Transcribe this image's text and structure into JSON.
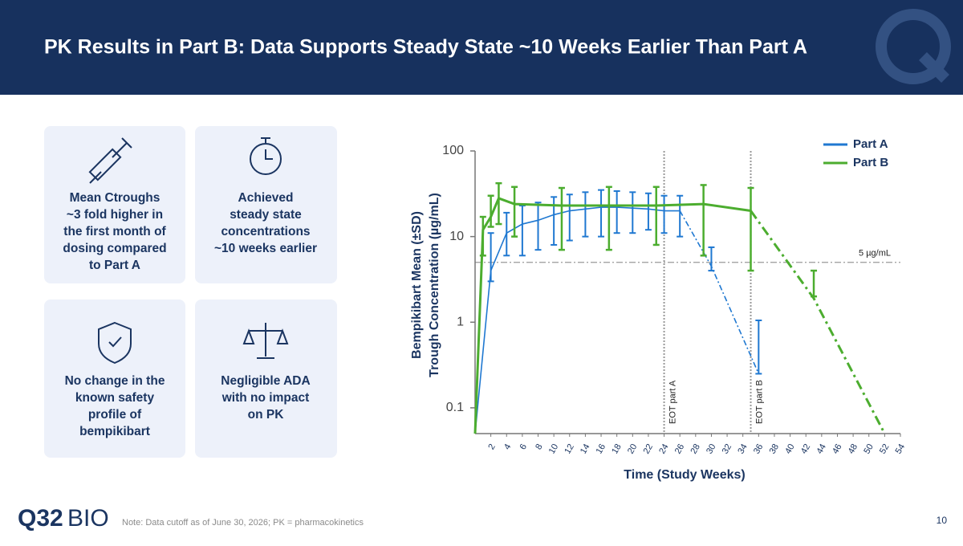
{
  "header": {
    "title": "PK Results in Part B: Data Supports Steady State ~10 Weeks Earlier Than Part A"
  },
  "cards": [
    {
      "lines": [
        "Mean Ctroughs",
        "~3 fold higher in",
        "the first month of",
        "dosing compared",
        "to Part A"
      ]
    },
    {
      "lines": [
        "Achieved",
        "steady state",
        "concentrations",
        "~10 weeks earlier"
      ]
    },
    {
      "lines": [
        "No change in the",
        "known safety",
        "profile of",
        "bempikibart"
      ]
    },
    {
      "lines": [
        "Negligible ADA",
        "with no impact",
        "on PK"
      ]
    }
  ],
  "chart_data": {
    "type": "line",
    "xlabel": "Time (Study Weeks)",
    "ylabel": [
      "Bempikibart Mean (±SD)",
      "Trough Concentration (µg/mL)"
    ],
    "xlim": [
      0,
      54
    ],
    "xticks": [
      2,
      4,
      6,
      8,
      10,
      12,
      14,
      16,
      18,
      20,
      22,
      24,
      26,
      28,
      30,
      32,
      34,
      36,
      38,
      40,
      42,
      44,
      46,
      48,
      50,
      52,
      54
    ],
    "ylim": [
      0.05,
      100
    ],
    "yticks": [
      0.1,
      1,
      10,
      100
    ],
    "log_y": true,
    "legend": "top-right",
    "reference_line": {
      "y": 5,
      "label": "5 µg/mL",
      "color": "#9a9a9a"
    },
    "vlines": [
      {
        "x": 24,
        "label": "EOT part A"
      },
      {
        "x": 35,
        "label": "EOT part B"
      }
    ],
    "series": [
      {
        "name": "Part A",
        "color": "#1f78d1",
        "dash_from": 26,
        "x": [
          0,
          2,
          4,
          6,
          8,
          10,
          12,
          14,
          16,
          18,
          20,
          22,
          24,
          26,
          30,
          36
        ],
        "values": [
          0.05,
          4,
          11,
          14,
          15.5,
          18,
          20,
          21,
          22,
          22,
          21.5,
          21,
          20,
          20,
          4.5,
          0.25
        ],
        "lower": [
          null,
          3,
          6,
          6,
          7,
          8,
          9,
          10,
          10,
          11,
          11,
          12,
          11,
          10,
          4,
          0.25
        ],
        "upper": [
          null,
          11,
          19,
          23,
          25,
          29,
          31,
          33,
          35,
          34,
          33,
          32,
          30,
          30,
          7.5,
          1.05
        ]
      },
      {
        "name": "Part B",
        "color": "#4cad2f",
        "dash_from": 35,
        "x": [
          0,
          1,
          2,
          3,
          5,
          11,
          17,
          23,
          29,
          35,
          43,
          52
        ],
        "values": [
          0.05,
          12,
          17,
          28,
          24,
          23,
          23,
          23,
          24,
          20,
          1.9,
          0.05
        ],
        "lower": [
          null,
          6,
          13,
          14,
          10,
          7,
          7,
          8,
          6,
          4,
          2,
          null
        ],
        "upper": [
          null,
          17,
          30,
          42,
          38,
          37,
          38,
          38,
          40,
          37,
          4,
          null
        ]
      }
    ]
  },
  "footer": {
    "note": "Note: Data cutoff as of June 30, 2026; PK = pharmacokinetics",
    "page": "10",
    "logo": [
      "Q32",
      "BIO"
    ]
  }
}
